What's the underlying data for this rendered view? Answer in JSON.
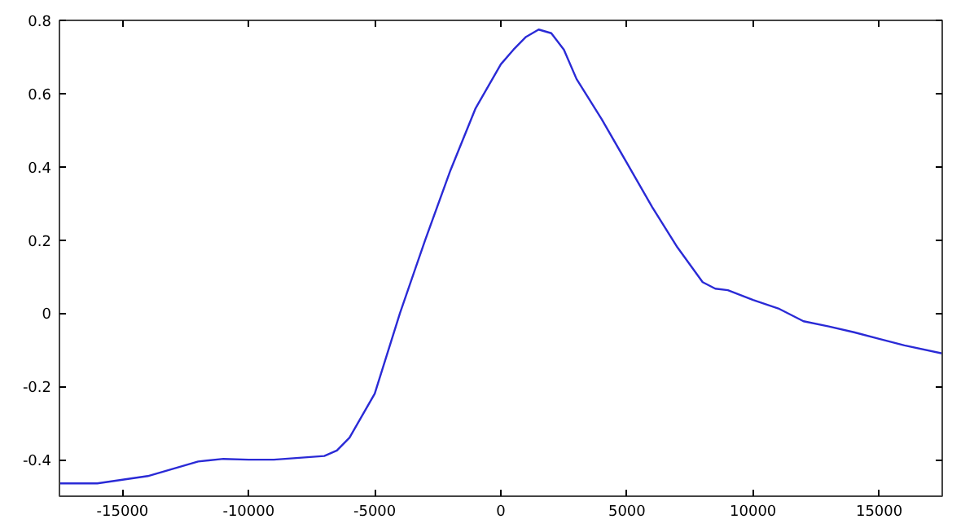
{
  "chart_data": {
    "type": "line",
    "grid": false,
    "xlim": [
      -17500,
      17500
    ],
    "ylim": [
      -0.5,
      0.8
    ],
    "xticks": [
      -15000,
      -10000,
      -5000,
      0,
      5000,
      10000,
      15000
    ],
    "yticks": [
      -0.4,
      -0.2,
      0,
      0.2,
      0.4,
      0.6,
      0.8
    ],
    "series": [
      {
        "color": "#2a2ad6",
        "x": [
          -17500,
          -16000,
          -15000,
          -14000,
          -13000,
          -12000,
          -11000,
          -10000,
          -9000,
          -8000,
          -7000,
          -6500,
          -6000,
          -5500,
          -5000,
          -4000,
          -3000,
          -2000,
          -1000,
          -500,
          0,
          500,
          1000,
          1500,
          2000,
          2500,
          3000,
          4000,
          5000,
          6000,
          7000,
          8000,
          8500,
          9000,
          10000,
          11000,
          12000,
          13000,
          14000,
          15000,
          16000,
          17500
        ],
        "values": [
          -0.465,
          -0.465,
          -0.455,
          -0.445,
          -0.425,
          -0.405,
          -0.398,
          -0.4,
          -0.4,
          -0.395,
          -0.39,
          -0.375,
          -0.34,
          -0.28,
          -0.22,
          0.0,
          0.2,
          0.39,
          0.56,
          0.62,
          0.68,
          0.72,
          0.755,
          0.775,
          0.765,
          0.72,
          0.64,
          0.53,
          0.41,
          0.29,
          0.18,
          0.085,
          0.067,
          0.063,
          0.036,
          0.013,
          -0.022,
          -0.036,
          -0.052,
          -0.07,
          -0.088,
          -0.11
        ]
      }
    ]
  }
}
